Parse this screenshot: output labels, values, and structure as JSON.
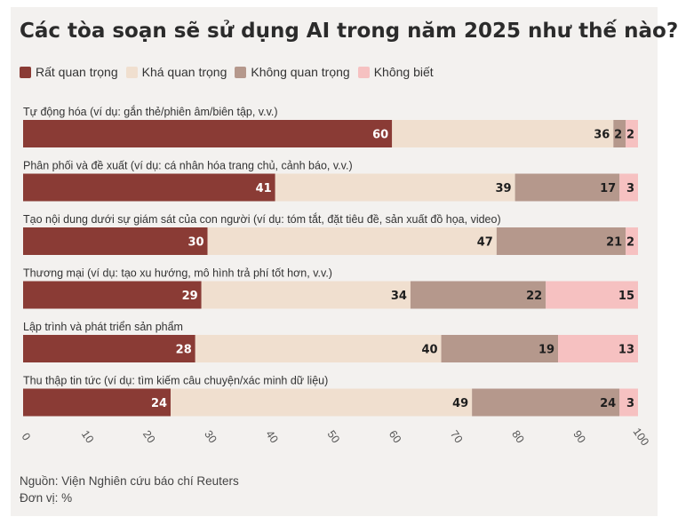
{
  "chart_data": {
    "type": "bar",
    "orientation": "horizontal",
    "stacked": true,
    "title": "Các tòa soạn sẽ sử dụng AI trong năm 2025 như thế nào?",
    "categories": [
      "Tự động hóa (ví dụ: gắn thẻ/phiên âm/biên tập, v.v.)",
      "Phân phối và đề xuất (ví dụ: cá nhân hóa trang chủ, cảnh báo, v.v.)",
      "Tạo nội dung dưới sự giám sát của con người (ví dụ: tóm tắt, đặt tiêu đề, sản xuất đồ họa, video)",
      "Thương mại (ví dụ: tạo xu hướng, mô hình trả phí tốt hơn, v.v.)",
      "Lập trình và phát triển sản phẩm",
      "Thu thập tin tức (ví dụ: tìm kiếm câu chuyện/xác minh dữ liệu)"
    ],
    "series": [
      {
        "name": "Rất quan trọng",
        "color": "#8a3b35",
        "values": [
          60,
          41,
          30,
          29,
          28,
          24
        ]
      },
      {
        "name": "Khá quan trọng",
        "color": "#f0dfcf",
        "values": [
          36,
          39,
          47,
          34,
          40,
          49
        ]
      },
      {
        "name": "Không quan trọng",
        "color": "#b5988c",
        "values": [
          2,
          17,
          21,
          22,
          19,
          24
        ]
      },
      {
        "name": "Không biết",
        "color": "#f6c1c1",
        "values": [
          2,
          3,
          2,
          15,
          13,
          3
        ]
      }
    ],
    "xlim": [
      0,
      100
    ],
    "xticks": [
      "0",
      "10",
      "20",
      "30",
      "40",
      "50",
      "60",
      "70",
      "80",
      "90",
      "100"
    ],
    "legend": "top-left"
  },
  "footer": {
    "source": "Nguồn: Viện Nghiên cứu báo chí Reuters",
    "unit": "Đơn vị: %"
  }
}
